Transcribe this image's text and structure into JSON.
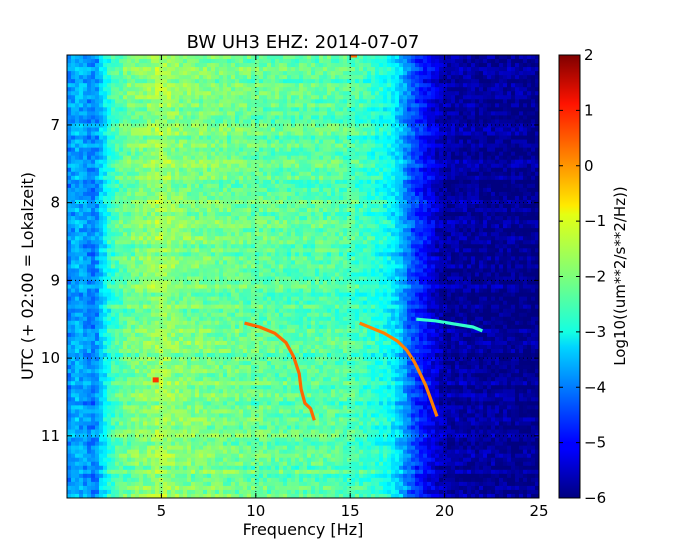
{
  "chart_data": {
    "type": "heatmap",
    "title": "BW UH3 EHZ: 2014-07-07",
    "xlabel": "Frequency [Hz]",
    "ylabel": "UTC (+ 02:00 = Lokalzeit)",
    "xlim": [
      0,
      25
    ],
    "ylim": [
      6.1,
      11.8
    ],
    "y_inverted": true,
    "x_ticks": [
      5,
      10,
      15,
      20,
      25
    ],
    "y_ticks": [
      7,
      8,
      9,
      10,
      11
    ],
    "grid": true,
    "colorbar": {
      "label": "Log10((um**2/s**2/Hz))",
      "range": [
        -6,
        2
      ],
      "ticks": [
        -6,
        -5,
        -4,
        -3,
        -2,
        -1,
        0,
        1,
        2
      ],
      "colormap": "jet"
    },
    "spectrum_profile": [
      {
        "f": 0.0,
        "v": -4.0
      },
      {
        "f": 0.5,
        "v": -3.6
      },
      {
        "f": 1.0,
        "v": -3.8
      },
      {
        "f": 1.5,
        "v": -4.0
      },
      {
        "f": 1.8,
        "v": -3.4
      },
      {
        "f": 2.3,
        "v": -2.6
      },
      {
        "f": 3.0,
        "v": -2.2
      },
      {
        "f": 4.5,
        "v": -1.9
      },
      {
        "f": 5.0,
        "v": -1.7
      },
      {
        "f": 6.0,
        "v": -2.0
      },
      {
        "f": 8.0,
        "v": -2.1
      },
      {
        "f": 10.0,
        "v": -2.2
      },
      {
        "f": 12.0,
        "v": -2.3
      },
      {
        "f": 14.0,
        "v": -2.3
      },
      {
        "f": 15.0,
        "v": -2.4
      },
      {
        "f": 16.0,
        "v": -2.6
      },
      {
        "f": 17.0,
        "v": -2.9
      },
      {
        "f": 17.6,
        "v": -3.4
      },
      {
        "f": 18.2,
        "v": -4.3
      },
      {
        "f": 19.0,
        "v": -5.0
      },
      {
        "f": 20.0,
        "v": -5.7
      },
      {
        "f": 25.0,
        "v": -5.9
      }
    ],
    "tracks": [
      {
        "name": "",
        "value": 0.2,
        "points": [
          [
            9.4,
            9.55
          ],
          [
            10.2,
            9.6
          ],
          [
            11.0,
            9.68
          ],
          [
            11.6,
            9.8
          ],
          [
            12.0,
            9.98
          ],
          [
            12.3,
            10.2
          ],
          [
            12.4,
            10.4
          ],
          [
            12.6,
            10.58
          ],
          [
            12.9,
            10.65
          ],
          [
            13.1,
            10.8
          ]
        ]
      },
      {
        "name": "",
        "value": 0.0,
        "points": [
          [
            15.5,
            9.55
          ],
          [
            16.0,
            9.6
          ],
          [
            16.8,
            9.68
          ],
          [
            17.5,
            9.78
          ],
          [
            18.0,
            9.9
          ],
          [
            18.4,
            10.05
          ],
          [
            18.7,
            10.2
          ],
          [
            19.0,
            10.35
          ],
          [
            19.3,
            10.55
          ],
          [
            19.6,
            10.75
          ]
        ]
      },
      {
        "name": "",
        "value": -2.6,
        "points": [
          [
            18.5,
            9.5
          ],
          [
            19.5,
            9.52
          ],
          [
            20.5,
            9.56
          ],
          [
            21.5,
            9.6
          ],
          [
            22.0,
            9.65
          ]
        ]
      }
    ],
    "spots": [
      {
        "x": 4.7,
        "y": 10.28,
        "value": 0.6
      },
      {
        "x": 15.2,
        "y": 6.1,
        "value": 0.2
      }
    ]
  }
}
